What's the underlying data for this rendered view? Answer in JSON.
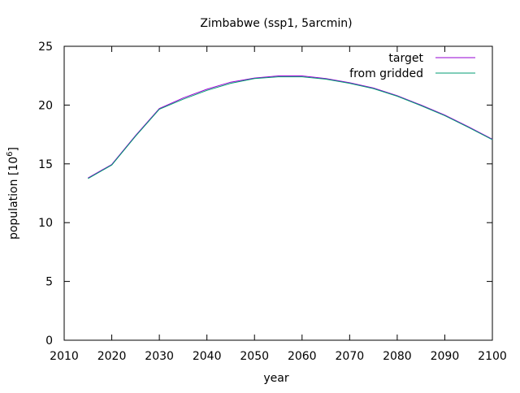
{
  "chart_data": {
    "type": "line",
    "title": "Zimbabwe (ssp1, 5arcmin)",
    "xlabel": "year",
    "ylabel": "population [10",
    "ylabel_sup": "6",
    "ylabel_close": "]",
    "xlim": [
      2010,
      2100
    ],
    "ylim": [
      0,
      25
    ],
    "xticks": [
      2010,
      2020,
      2030,
      2040,
      2050,
      2060,
      2070,
      2080,
      2090,
      2100
    ],
    "yticks": [
      0,
      5,
      10,
      15,
      20,
      25
    ],
    "grid": false,
    "legend_position": "top-right",
    "x": [
      2015,
      2020,
      2025,
      2030,
      2035,
      2040,
      2045,
      2050,
      2055,
      2060,
      2065,
      2070,
      2075,
      2080,
      2085,
      2090,
      2095,
      2100
    ],
    "series": [
      {
        "name": "target",
        "color": "#9400d3",
        "values": [
          13.8,
          14.95,
          17.4,
          19.7,
          20.6,
          21.35,
          21.95,
          22.3,
          22.48,
          22.48,
          22.25,
          21.9,
          21.45,
          20.8,
          20.0,
          19.15,
          18.15,
          17.1
        ]
      },
      {
        "name": "from gridded",
        "color": "#009e73",
        "values": [
          13.75,
          14.9,
          17.35,
          19.65,
          20.5,
          21.25,
          21.85,
          22.25,
          22.4,
          22.4,
          22.2,
          21.85,
          21.4,
          20.75,
          19.95,
          19.1,
          18.1,
          17.05
        ]
      }
    ]
  }
}
